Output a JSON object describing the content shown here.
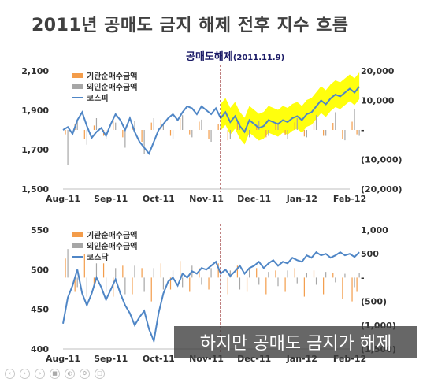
{
  "slide": {
    "title": "2011년 공매도 금지 해제 전후 지수 흐름",
    "lift_label": "공매도해제",
    "lift_date": "(2011.11.9)",
    "subtitle": "하지만 공매도 금지가 해제"
  },
  "colors": {
    "institution": "#f39c4a",
    "foreign": "#a6a6a6",
    "index": "#4f86c6",
    "highlight": "#ffff00",
    "marker": "#8b1a1a"
  },
  "player_icons": [
    "prev-icon",
    "play-icon",
    "next-icon",
    "stop-icon",
    "volume-icon",
    "settings-icon",
    "fullscreen-icon"
  ],
  "chart_data": [
    {
      "type": "line",
      "index_name": "코스피",
      "legend": [
        "기관순매수금액",
        "외인순매수금액",
        "코스피"
      ],
      "x_ticks": [
        "Aug-11",
        "Sep-11",
        "Oct-11",
        "Nov-11",
        "Dec-11",
        "Jan-12",
        "Feb-12"
      ],
      "y_left_ticks": [
        "2,100",
        "1,900",
        "1,700",
        "1,500"
      ],
      "y_left_range": [
        1500,
        2100
      ],
      "y_right_ticks": [
        "20,000",
        "10,000",
        "-",
        "(10,000)",
        "(20,000)"
      ],
      "y_right_range": [
        -20000,
        20000
      ],
      "event_marker_x": 3.3,
      "highlight_from_x": 3.3,
      "index_series": [
        [
          0.0,
          1800
        ],
        [
          0.1,
          1815
        ],
        [
          0.2,
          1780
        ],
        [
          0.3,
          1850
        ],
        [
          0.4,
          1890
        ],
        [
          0.5,
          1820
        ],
        [
          0.6,
          1760
        ],
        [
          0.7,
          1790
        ],
        [
          0.8,
          1810
        ],
        [
          0.9,
          1770
        ],
        [
          1.0,
          1830
        ],
        [
          1.1,
          1880
        ],
        [
          1.2,
          1850
        ],
        [
          1.3,
          1800
        ],
        [
          1.4,
          1860
        ],
        [
          1.5,
          1790
        ],
        [
          1.6,
          1740
        ],
        [
          1.7,
          1710
        ],
        [
          1.8,
          1680
        ],
        [
          1.9,
          1740
        ],
        [
          2.0,
          1800
        ],
        [
          2.1,
          1830
        ],
        [
          2.2,
          1860
        ],
        [
          2.3,
          1880
        ],
        [
          2.4,
          1850
        ],
        [
          2.5,
          1890
        ],
        [
          2.6,
          1920
        ],
        [
          2.7,
          1910
        ],
        [
          2.8,
          1880
        ],
        [
          2.9,
          1920
        ],
        [
          3.0,
          1900
        ],
        [
          3.1,
          1880
        ],
        [
          3.2,
          1910
        ],
        [
          3.3,
          1860
        ],
        [
          3.4,
          1890
        ],
        [
          3.5,
          1840
        ],
        [
          3.6,
          1870
        ],
        [
          3.7,
          1820
        ],
        [
          3.8,
          1790
        ],
        [
          3.9,
          1850
        ],
        [
          4.0,
          1830
        ],
        [
          4.1,
          1810
        ],
        [
          4.2,
          1820
        ],
        [
          4.3,
          1850
        ],
        [
          4.4,
          1840
        ],
        [
          4.5,
          1830
        ],
        [
          4.6,
          1850
        ],
        [
          4.7,
          1840
        ],
        [
          4.8,
          1860
        ],
        [
          4.9,
          1870
        ],
        [
          5.0,
          1850
        ],
        [
          5.1,
          1880
        ],
        [
          5.2,
          1890
        ],
        [
          5.3,
          1920
        ],
        [
          5.4,
          1950
        ],
        [
          5.5,
          1930
        ],
        [
          5.6,
          1960
        ],
        [
          5.7,
          1980
        ],
        [
          5.8,
          1970
        ],
        [
          5.9,
          1990
        ],
        [
          6.0,
          2010
        ],
        [
          6.1,
          1990
        ],
        [
          6.2,
          2020
        ]
      ],
      "institution_flow": [
        [
          0.05,
          -1500
        ],
        [
          0.25,
          2000
        ],
        [
          0.45,
          -3000
        ],
        [
          0.65,
          1500
        ],
        [
          0.85,
          -2000
        ],
        [
          1.05,
          3000
        ],
        [
          1.25,
          -2500
        ],
        [
          1.45,
          1800
        ],
        [
          1.65,
          -4000
        ],
        [
          1.85,
          2500
        ],
        [
          2.05,
          3500
        ],
        [
          2.25,
          -2000
        ],
        [
          2.45,
          4000
        ],
        [
          2.65,
          -1500
        ],
        [
          2.85,
          2800
        ],
        [
          3.05,
          -3000
        ],
        [
          3.25,
          2000
        ],
        [
          3.45,
          -3500
        ],
        [
          3.65,
          2500
        ],
        [
          3.85,
          -2000
        ],
        [
          4.05,
          1800
        ],
        [
          4.25,
          -2500
        ],
        [
          4.45,
          2200
        ],
        [
          4.65,
          -1800
        ],
        [
          4.85,
          2600
        ],
        [
          5.05,
          -2200
        ],
        [
          5.25,
          3000
        ],
        [
          5.45,
          -2000
        ],
        [
          5.65,
          2400
        ],
        [
          5.85,
          -3000
        ],
        [
          6.05,
          2800
        ],
        [
          6.15,
          -1500
        ]
      ],
      "foreign_flow": [
        [
          0.1,
          -12000
        ],
        [
          0.3,
          3000
        ],
        [
          0.5,
          -5000
        ],
        [
          0.7,
          4000
        ],
        [
          0.9,
          -3000
        ],
        [
          1.1,
          2500
        ],
        [
          1.3,
          -6000
        ],
        [
          1.5,
          3000
        ],
        [
          1.7,
          -8000
        ],
        [
          1.9,
          4000
        ],
        [
          2.1,
          2000
        ],
        [
          2.3,
          -3000
        ],
        [
          2.5,
          5000
        ],
        [
          2.7,
          -2500
        ],
        [
          2.9,
          3500
        ],
        [
          3.1,
          -4000
        ],
        [
          3.3,
          2000
        ],
        [
          3.5,
          -3000
        ],
        [
          3.7,
          2500
        ],
        [
          3.9,
          -2500
        ],
        [
          4.1,
          3000
        ],
        [
          4.3,
          -2000
        ],
        [
          4.5,
          2500
        ],
        [
          4.7,
          -3000
        ],
        [
          4.9,
          4000
        ],
        [
          5.1,
          -2500
        ],
        [
          5.3,
          5000
        ],
        [
          5.5,
          -2000
        ],
        [
          5.7,
          6000
        ],
        [
          5.9,
          -3500
        ],
        [
          6.1,
          7000
        ],
        [
          6.2,
          -2000
        ]
      ]
    },
    {
      "type": "line",
      "index_name": "코스닥",
      "legend": [
        "기관순매수금액",
        "외인순매수금액",
        "코스닥"
      ],
      "x_ticks": [
        "Aug-11",
        "Sep-11",
        "Oct-11",
        "Nov-11",
        "Dec-11",
        "Jan-12",
        "Feb-12"
      ],
      "y_left_ticks": [
        "550",
        "500",
        "450",
        "400"
      ],
      "y_left_range": [
        400,
        550
      ],
      "y_right_ticks": [
        "1,000",
        "500",
        "-",
        "(500)",
        "(1,000)",
        "(1,500)"
      ],
      "y_right_range": [
        -1500,
        1000
      ],
      "event_marker_x": 3.3,
      "index_series": [
        [
          0.0,
          432
        ],
        [
          0.1,
          465
        ],
        [
          0.2,
          480
        ],
        [
          0.3,
          500
        ],
        [
          0.4,
          470
        ],
        [
          0.5,
          455
        ],
        [
          0.6,
          470
        ],
        [
          0.7,
          490
        ],
        [
          0.8,
          478
        ],
        [
          0.9,
          462
        ],
        [
          1.0,
          475
        ],
        [
          1.1,
          488
        ],
        [
          1.2,
          470
        ],
        [
          1.3,
          455
        ],
        [
          1.4,
          445
        ],
        [
          1.5,
          430
        ],
        [
          1.6,
          440
        ],
        [
          1.7,
          448
        ],
        [
          1.8,
          425
        ],
        [
          1.9,
          410
        ],
        [
          2.0,
          445
        ],
        [
          2.1,
          470
        ],
        [
          2.2,
          485
        ],
        [
          2.3,
          490
        ],
        [
          2.4,
          480
        ],
        [
          2.5,
          495
        ],
        [
          2.6,
          490
        ],
        [
          2.7,
          498
        ],
        [
          2.8,
          495
        ],
        [
          2.9,
          502
        ],
        [
          3.0,
          500
        ],
        [
          3.1,
          505
        ],
        [
          3.2,
          510
        ],
        [
          3.3,
          495
        ],
        [
          3.4,
          500
        ],
        [
          3.5,
          492
        ],
        [
          3.6,
          498
        ],
        [
          3.7,
          505
        ],
        [
          3.8,
          495
        ],
        [
          3.9,
          502
        ],
        [
          4.0,
          505
        ],
        [
          4.1,
          510
        ],
        [
          4.2,
          502
        ],
        [
          4.3,
          508
        ],
        [
          4.4,
          512
        ],
        [
          4.5,
          505
        ],
        [
          4.6,
          510
        ],
        [
          4.7,
          508
        ],
        [
          4.8,
          515
        ],
        [
          4.9,
          512
        ],
        [
          5.0,
          510
        ],
        [
          5.1,
          518
        ],
        [
          5.2,
          515
        ],
        [
          5.3,
          522
        ],
        [
          5.4,
          518
        ],
        [
          5.5,
          520
        ],
        [
          5.6,
          515
        ],
        [
          5.7,
          518
        ],
        [
          5.8,
          522
        ],
        [
          5.9,
          518
        ],
        [
          6.0,
          520
        ],
        [
          6.1,
          516
        ],
        [
          6.2,
          522
        ]
      ],
      "institution_flow": [
        [
          0.05,
          400
        ],
        [
          0.25,
          -300
        ],
        [
          0.45,
          500
        ],
        [
          0.65,
          -200
        ],
        [
          0.85,
          300
        ],
        [
          1.05,
          -400
        ],
        [
          1.25,
          250
        ],
        [
          1.45,
          -350
        ],
        [
          1.65,
          200
        ],
        [
          1.85,
          -500
        ],
        [
          2.05,
          300
        ],
        [
          2.25,
          -250
        ],
        [
          2.45,
          350
        ],
        [
          2.65,
          -300
        ],
        [
          2.85,
          200
        ],
        [
          3.05,
          -250
        ],
        [
          3.25,
          300
        ],
        [
          3.45,
          -350
        ],
        [
          3.65,
          250
        ],
        [
          3.85,
          -300
        ],
        [
          4.05,
          200
        ],
        [
          4.25,
          -350
        ],
        [
          4.45,
          150
        ],
        [
          4.65,
          -300
        ],
        [
          4.85,
          200
        ],
        [
          5.05,
          -400
        ],
        [
          5.25,
          150
        ],
        [
          5.45,
          -350
        ],
        [
          5.65,
          100
        ],
        [
          5.85,
          -450
        ],
        [
          6.05,
          -500
        ],
        [
          6.15,
          -300
        ]
      ],
      "foreign_flow": [
        [
          0.1,
          600
        ],
        [
          0.3,
          -200
        ],
        [
          0.5,
          -400
        ],
        [
          0.7,
          300
        ],
        [
          0.9,
          -300
        ],
        [
          1.1,
          200
        ],
        [
          1.3,
          -350
        ],
        [
          1.5,
          250
        ],
        [
          1.7,
          -300
        ],
        [
          1.9,
          200
        ],
        [
          2.1,
          -250
        ],
        [
          2.3,
          150
        ],
        [
          2.5,
          -200
        ],
        [
          2.7,
          250
        ],
        [
          2.9,
          -150
        ],
        [
          3.1,
          200
        ],
        [
          3.3,
          -200
        ],
        [
          3.5,
          150
        ],
        [
          3.7,
          -250
        ],
        [
          3.9,
          180
        ],
        [
          4.1,
          -150
        ],
        [
          4.3,
          120
        ],
        [
          4.5,
          -180
        ],
        [
          4.7,
          150
        ],
        [
          4.9,
          -120
        ],
        [
          5.1,
          100
        ],
        [
          5.3,
          -150
        ],
        [
          5.5,
          120
        ],
        [
          5.7,
          -100
        ],
        [
          5.9,
          80
        ],
        [
          6.1,
          -200
        ],
        [
          6.2,
          100
        ]
      ]
    }
  ]
}
